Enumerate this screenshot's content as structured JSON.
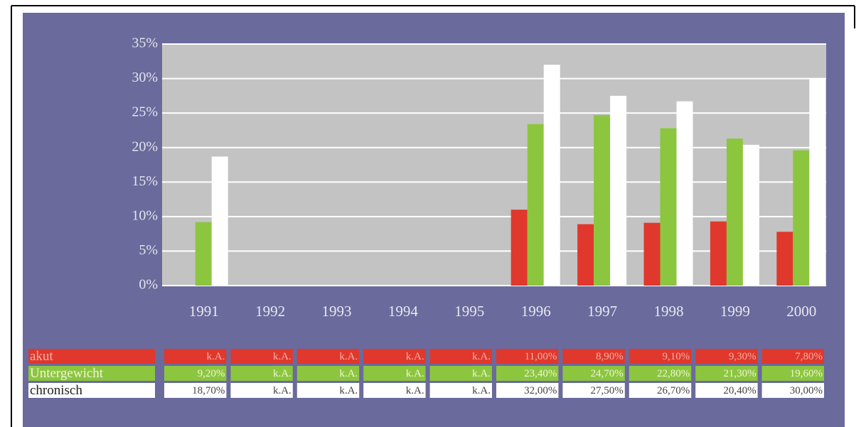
{
  "chart_data": {
    "type": "bar",
    "categories": [
      "1991",
      "1992",
      "1993",
      "1994",
      "1995",
      "1996",
      "1997",
      "1998",
      "1999",
      "2000"
    ],
    "series": [
      {
        "name": "akut",
        "color": "#e0382c",
        "values": [
          null,
          null,
          null,
          null,
          null,
          11.0,
          8.9,
          9.1,
          9.3,
          7.8
        ],
        "value_labels": [
          "k.A.",
          "k.A.",
          "k.A.",
          "k.A.",
          "k.A.",
          "11,00%",
          "8,90%",
          "9,10%",
          "9,30%",
          "7,80%"
        ]
      },
      {
        "name": "Untergewicht",
        "color": "#8cc63e",
        "values": [
          9.2,
          null,
          null,
          null,
          null,
          23.4,
          24.7,
          22.8,
          21.3,
          19.6
        ],
        "value_labels": [
          "9,20%",
          "k.A.",
          "k.A.",
          "k.A.",
          "k.A.",
          "23,40%",
          "24,70%",
          "22,80%",
          "21,30%",
          "19,60%"
        ]
      },
      {
        "name": "chronisch",
        "color": "#ffffff",
        "values": [
          18.7,
          null,
          null,
          null,
          null,
          32.0,
          27.5,
          26.7,
          20.4,
          30.0
        ],
        "value_labels": [
          "18,70%",
          "k.A.",
          "k.A.",
          "k.A.",
          "k.A.",
          "32,00%",
          "27,50%",
          "26,70%",
          "20,40%",
          "30,00%"
        ]
      }
    ],
    "ylim": [
      0,
      35
    ],
    "yticks": [
      {
        "value": 0,
        "label": "0%"
      },
      {
        "value": 5,
        "label": "5%"
      },
      {
        "value": 10,
        "label": "10%"
      },
      {
        "value": 15,
        "label": "15%"
      },
      {
        "value": 20,
        "label": "20%"
      },
      {
        "value": 25,
        "label": "25%"
      },
      {
        "value": 30,
        "label": "30%"
      },
      {
        "value": 35,
        "label": "35%"
      }
    ],
    "grid": true
  }
}
